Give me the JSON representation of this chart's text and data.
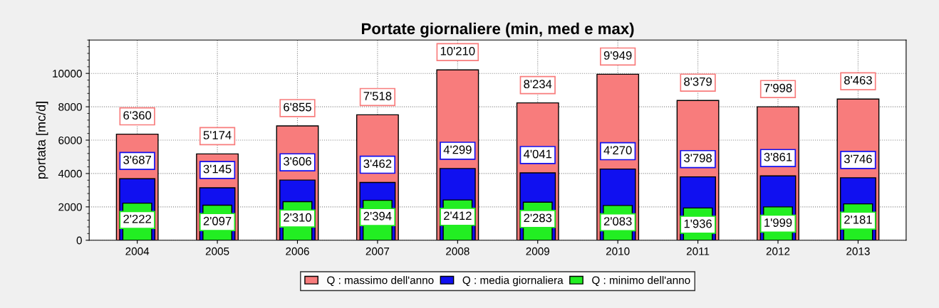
{
  "chart_data": {
    "type": "bar",
    "title": "Portate giornaliere (min, med e max)",
    "ylabel": "portata [mc/d]",
    "categories": [
      "2004",
      "2005",
      "2006",
      "2007",
      "2008",
      "2009",
      "2010",
      "2011",
      "2012",
      "2013"
    ],
    "series": [
      {
        "name": "Q : massimo dell'anno",
        "color": "#f87c7c",
        "values": [
          6360,
          5174,
          6855,
          7518,
          10210,
          8234,
          9949,
          8379,
          7998,
          8463
        ],
        "value_labels": [
          "6'360",
          "5'174",
          "6'855",
          "7'518",
          "10'210",
          "8'234",
          "9'949",
          "8'379",
          "7'998",
          "8'463"
        ]
      },
      {
        "name": "Q : media giornaliera",
        "color": "#1010f0",
        "values": [
          3687,
          3145,
          3606,
          3462,
          4299,
          4041,
          4270,
          3798,
          3861,
          3746
        ],
        "value_labels": [
          "3'687",
          "3'145",
          "3'606",
          "3'462",
          "4'299",
          "4'041",
          "4'270",
          "3'798",
          "3'861",
          "3'746"
        ]
      },
      {
        "name": "Q : minimo dell'anno",
        "color": "#22ee22",
        "values": [
          2222,
          2097,
          2310,
          2394,
          2412,
          2283,
          2083,
          1936,
          1999,
          2181
        ],
        "value_labels": [
          "2'222",
          "2'097",
          "2'310",
          "2'394",
          "2'412",
          "2'283",
          "2'083",
          "1'936",
          "1'999",
          "2'181"
        ]
      }
    ],
    "ylim": [
      0,
      12000
    ],
    "yticks": [
      0,
      2000,
      4000,
      6000,
      8000,
      10000
    ],
    "grid": true,
    "legend": "bottom"
  }
}
